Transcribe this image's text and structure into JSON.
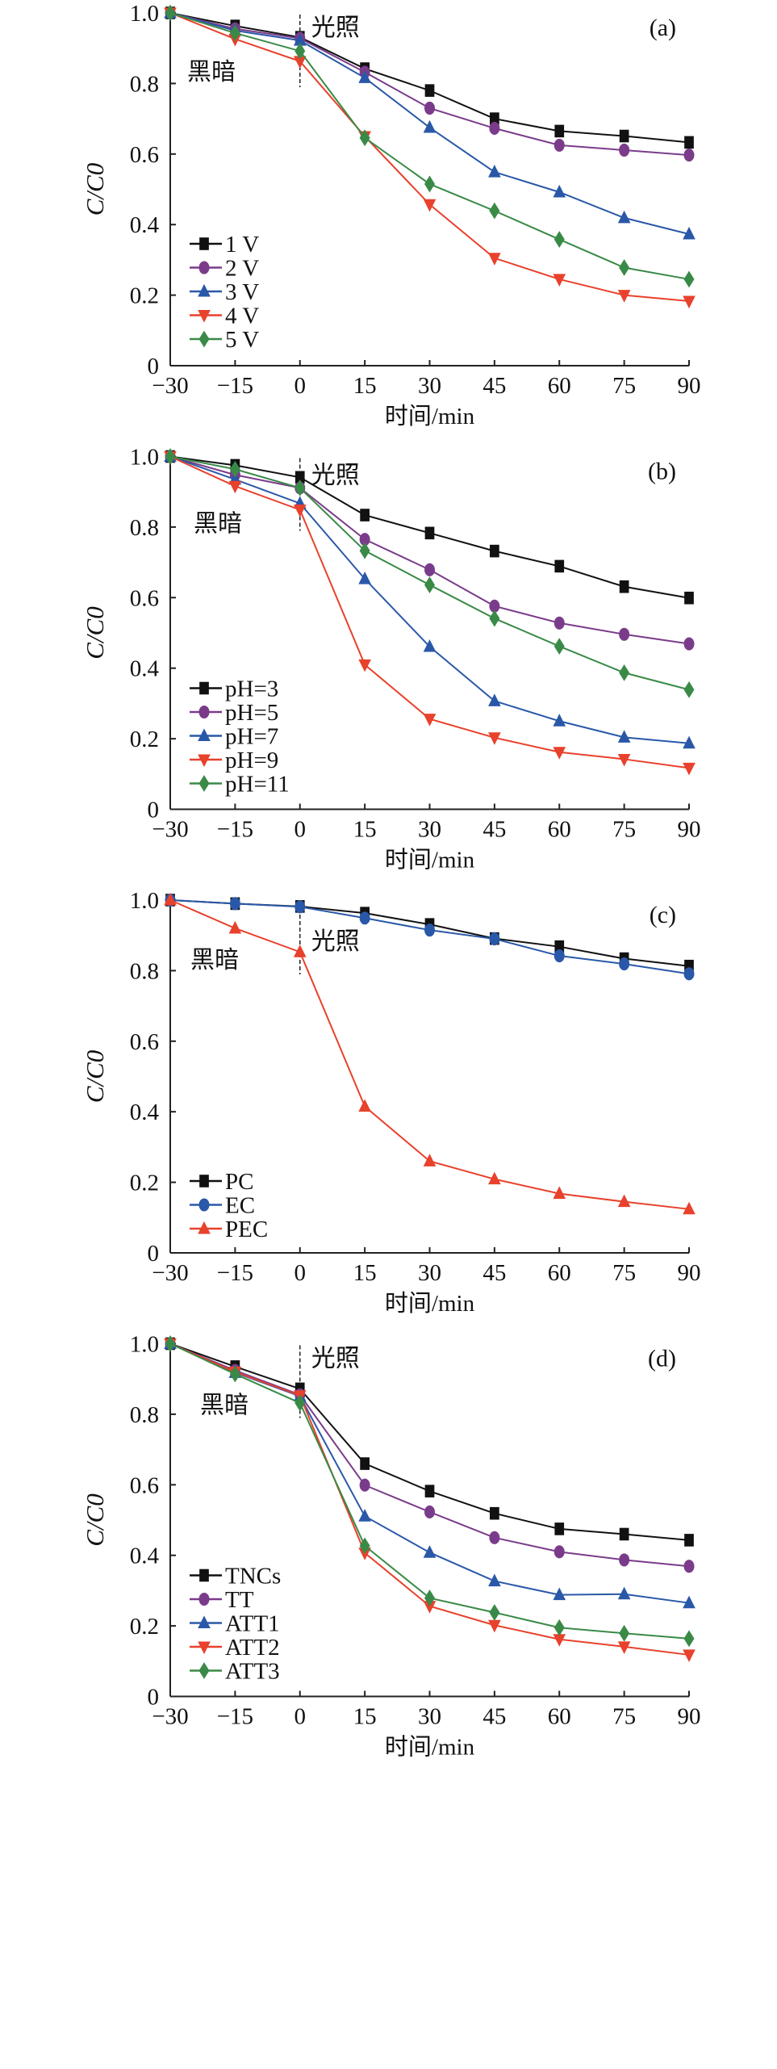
{
  "chart_data": [
    {
      "type": "line",
      "panel_label": "(a)",
      "light_label": "光照",
      "dark_label": "黑暗",
      "xlabel": "时间/min",
      "ylabel": "C/C0",
      "xlim": [
        -30,
        90
      ],
      "ylim": [
        0,
        1.0
      ],
      "x": [
        -30,
        -15,
        0,
        15,
        30,
        45,
        60,
        75,
        90
      ],
      "xticks": [
        "-30",
        "-15",
        "0",
        "15",
        "30",
        "45",
        "60",
        "75",
        "90"
      ],
      "yticks": [
        {
          "v": 0,
          "label": "0"
        },
        {
          "v": 0.2,
          "label": "0.2"
        },
        {
          "v": 0.4,
          "label": "0.4"
        },
        {
          "v": 0.6,
          "label": "0.6"
        },
        {
          "v": 0.8,
          "label": "0.8"
        },
        {
          "v": 1.0,
          "label": "1.0"
        }
      ],
      "legend_position": "lower-left",
      "series": [
        {
          "name": "1 V",
          "color": "#111111",
          "marker": "square",
          "values": [
            1.0,
            0.963,
            0.931,
            0.842,
            0.78,
            0.7,
            0.665,
            0.651,
            0.633
          ]
        },
        {
          "name": "2 V",
          "color": "#7a3c8a",
          "marker": "circle",
          "values": [
            1.0,
            0.955,
            0.928,
            0.832,
            0.73,
            0.673,
            0.625,
            0.611,
            0.597
          ]
        },
        {
          "name": "3 V",
          "color": "#2a58a8",
          "marker": "triangle-up",
          "values": [
            1.0,
            0.95,
            0.922,
            0.816,
            0.675,
            0.549,
            0.492,
            0.419,
            0.373
          ]
        },
        {
          "name": "4 V",
          "color": "#e8412c",
          "marker": "triangle-down",
          "values": [
            1.0,
            0.926,
            0.863,
            0.65,
            0.457,
            0.305,
            0.245,
            0.2,
            0.183
          ]
        },
        {
          "name": "5 V",
          "color": "#3a8a47",
          "marker": "diamond",
          "values": [
            1.0,
            0.943,
            0.892,
            0.646,
            0.515,
            0.439,
            0.358,
            0.278,
            0.245
          ]
        }
      ]
    },
    {
      "type": "line",
      "panel_label": "(b)",
      "light_label": "光照",
      "dark_label": "黑暗",
      "xlabel": "时间/min",
      "ylabel": "C/C0",
      "xlim": [
        -30,
        90
      ],
      "ylim": [
        0,
        1.0
      ],
      "x": [
        -30,
        -15,
        0,
        15,
        30,
        45,
        60,
        75,
        90
      ],
      "xticks": [
        "-30",
        "-15",
        "0",
        "15",
        "30",
        "45",
        "60",
        "75",
        "90"
      ],
      "yticks": [
        {
          "v": 0,
          "label": "0"
        },
        {
          "v": 0.2,
          "label": "0.2"
        },
        {
          "v": 0.4,
          "label": "0.4"
        },
        {
          "v": 0.6,
          "label": "0.6"
        },
        {
          "v": 0.8,
          "label": "0.8"
        },
        {
          "v": 1.0,
          "label": "1.0"
        }
      ],
      "legend_position": "lower-left",
      "series": [
        {
          "name": "pH=3",
          "color": "#111111",
          "marker": "square",
          "values": [
            1.0,
            0.975,
            0.941,
            0.834,
            0.783,
            0.732,
            0.689,
            0.631,
            0.599
          ]
        },
        {
          "name": "pH=5",
          "color": "#7a3c8a",
          "marker": "circle",
          "values": [
            1.0,
            0.948,
            0.911,
            0.765,
            0.679,
            0.576,
            0.528,
            0.496,
            0.469
          ]
        },
        {
          "name": "pH=7",
          "color": "#2a58a8",
          "marker": "triangle-up",
          "values": [
            1.0,
            0.935,
            0.867,
            0.653,
            0.461,
            0.307,
            0.25,
            0.204,
            0.187
          ]
        },
        {
          "name": "pH=9",
          "color": "#e8412c",
          "marker": "triangle-down",
          "values": [
            1.0,
            0.916,
            0.849,
            0.41,
            0.256,
            0.203,
            0.162,
            0.142,
            0.117
          ]
        },
        {
          "name": "pH=11",
          "color": "#3a8a47",
          "marker": "diamond",
          "values": [
            1.0,
            0.964,
            0.911,
            0.733,
            0.636,
            0.541,
            0.462,
            0.387,
            0.339
          ]
        }
      ]
    },
    {
      "type": "line",
      "panel_label": "(c)",
      "light_label": "光照",
      "dark_label": "黑暗",
      "xlabel": "时间/min",
      "ylabel": "C/C0",
      "xlim": [
        -30,
        90
      ],
      "ylim": [
        0,
        1.0
      ],
      "x": [
        -30,
        -15,
        0,
        15,
        30,
        45,
        60,
        75,
        90
      ],
      "xticks": [
        "-30",
        "-15",
        "0",
        "15",
        "30",
        "45",
        "60",
        "75",
        "90"
      ],
      "yticks": [
        {
          "v": 0,
          "label": "0"
        },
        {
          "v": 0.2,
          "label": "0.2"
        },
        {
          "v": 0.4,
          "label": "0.4"
        },
        {
          "v": 0.6,
          "label": "0.6"
        },
        {
          "v": 0.8,
          "label": "0.8"
        },
        {
          "v": 1.0,
          "label": "1.0"
        }
      ],
      "legend_position": "lower-left",
      "series": [
        {
          "name": "PC",
          "color": "#111111",
          "marker": "square",
          "values": [
            1.0,
            0.99,
            0.982,
            0.963,
            0.931,
            0.891,
            0.868,
            0.834,
            0.813
          ]
        },
        {
          "name": "EC",
          "color": "#2a58a8",
          "marker": "circle",
          "values": [
            1.0,
            0.99,
            0.981,
            0.949,
            0.915,
            0.89,
            0.842,
            0.819,
            0.791
          ]
        },
        {
          "name": "PEC",
          "color": "#e8412c",
          "marker": "triangle-up",
          "values": [
            1.0,
            0.92,
            0.853,
            0.415,
            0.26,
            0.209,
            0.168,
            0.145,
            0.124
          ]
        }
      ]
    },
    {
      "type": "line",
      "panel_label": "(d)",
      "light_label": "光照",
      "dark_label": "黑暗",
      "xlabel": "时间/min",
      "ylabel": "C/C0",
      "xlim": [
        -30,
        90
      ],
      "ylim": [
        0,
        1.0
      ],
      "x": [
        -30,
        -15,
        0,
        15,
        30,
        45,
        60,
        75,
        90
      ],
      "xticks": [
        "-30",
        "-15",
        "0",
        "15",
        "30",
        "45",
        "60",
        "75",
        "90"
      ],
      "yticks": [
        {
          "v": 0,
          "label": "0"
        },
        {
          "v": 0.2,
          "label": "0.2"
        },
        {
          "v": 0.4,
          "label": "0.4"
        },
        {
          "v": 0.6,
          "label": "0.6"
        },
        {
          "v": 0.8,
          "label": "0.8"
        },
        {
          "v": 1.0,
          "label": "1.0"
        }
      ],
      "legend_position": "lower-left",
      "series": [
        {
          "name": "TNCs",
          "color": "#111111",
          "marker": "square",
          "values": [
            1.0,
            0.935,
            0.872,
            0.66,
            0.582,
            0.519,
            0.475,
            0.46,
            0.443
          ]
        },
        {
          "name": "TT",
          "color": "#7a3c8a",
          "marker": "circle",
          "values": [
            1.0,
            0.924,
            0.855,
            0.599,
            0.523,
            0.45,
            0.41,
            0.387,
            0.369
          ]
        },
        {
          "name": "ATT1",
          "color": "#2a58a8",
          "marker": "triangle-up",
          "values": [
            1.0,
            0.918,
            0.851,
            0.511,
            0.408,
            0.327,
            0.288,
            0.29,
            0.265
          ]
        },
        {
          "name": "ATT2",
          "color": "#e8412c",
          "marker": "triangle-down",
          "values": [
            1.0,
            0.92,
            0.853,
            0.407,
            0.256,
            0.202,
            0.162,
            0.141,
            0.118
          ]
        },
        {
          "name": "ATT3",
          "color": "#3a8a47",
          "marker": "diamond",
          "values": [
            1.0,
            0.914,
            0.832,
            0.427,
            0.279,
            0.238,
            0.195,
            0.179,
            0.164
          ]
        }
      ]
    }
  ]
}
